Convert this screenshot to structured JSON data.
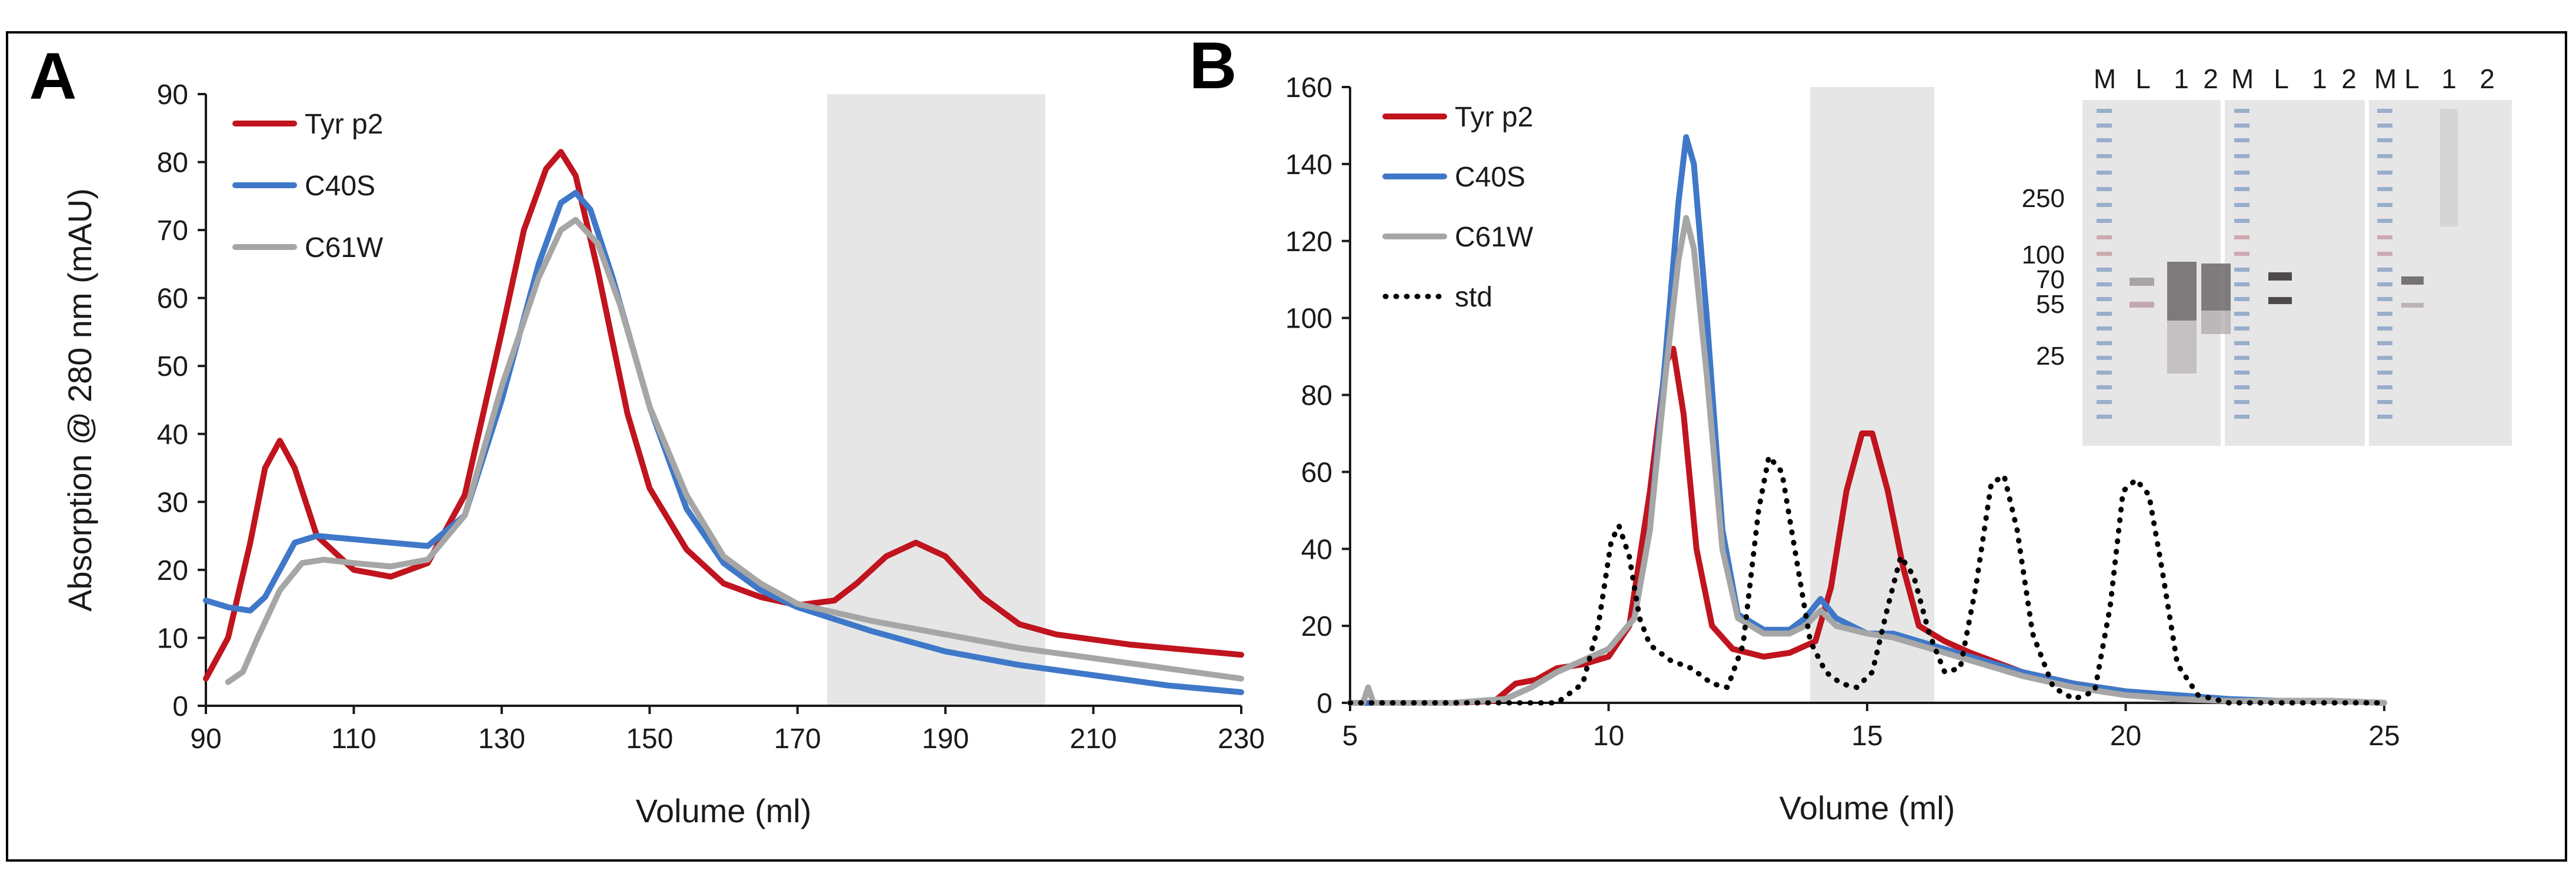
{
  "chart_data": [
    {
      "panel_label": "A",
      "type": "line",
      "xlabel": "Volume (ml)",
      "ylabel": "Absorption @ 280 nm (mAU)",
      "xlim": [
        90,
        230
      ],
      "ylim": [
        0,
        90
      ],
      "xticks": [
        90,
        110,
        130,
        150,
        170,
        190,
        210,
        230
      ],
      "yticks": [
        0,
        10,
        20,
        30,
        40,
        50,
        60,
        70,
        80,
        90
      ],
      "grid": false,
      "legend_position": "top-left",
      "shaded_region": {
        "x": [
          174,
          203.5
        ],
        "color": "#e6e6e6"
      },
      "series": [
        {
          "name": "Tyr p2",
          "color": "#c0141e",
          "x": [
            90,
            93,
            96,
            98,
            100,
            102,
            105,
            110,
            115,
            120,
            125,
            130,
            133,
            136,
            138,
            140,
            143,
            147,
            150,
            155,
            160,
            165,
            170,
            175,
            178,
            182,
            186,
            190,
            195,
            200,
            205,
            215,
            230
          ],
          "y": [
            4,
            10,
            24,
            35,
            39,
            35,
            25,
            20,
            19,
            21,
            31,
            55,
            70,
            79,
            81.5,
            78,
            64,
            43,
            32,
            23,
            18,
            16,
            14.8,
            15.5,
            18,
            22,
            24,
            22,
            16,
            12,
            10.5,
            9,
            7.5
          ]
        },
        {
          "name": "C40S",
          "color": "#3f78c8",
          "x": [
            90,
            93,
            96,
            98,
            100,
            102,
            105,
            110,
            115,
            120,
            125,
            130,
            135,
            138,
            140,
            142,
            145,
            150,
            155,
            160,
            165,
            170,
            180,
            190,
            200,
            210,
            220,
            230
          ],
          "y": [
            15.5,
            14.5,
            14,
            16,
            20,
            24,
            25,
            24.5,
            24,
            23.5,
            28,
            45,
            65,
            74,
            75.5,
            73,
            63,
            44,
            29,
            21,
            17,
            14.5,
            11,
            8,
            6,
            4.5,
            3,
            2
          ]
        },
        {
          "name": "C61W",
          "color": "#a6a6a6",
          "x": [
            93,
            95,
            97,
            100,
            103,
            106,
            110,
            115,
            120,
            125,
            130,
            135,
            138,
            140,
            143,
            146,
            150,
            155,
            160,
            165,
            170,
            180,
            190,
            200,
            210,
            220,
            230
          ],
          "y": [
            3.5,
            5,
            10,
            17,
            21,
            21.5,
            21,
            20.5,
            21.5,
            28,
            47,
            63,
            70,
            71.5,
            68,
            59,
            44,
            31,
            22,
            18,
            15,
            12.5,
            10.5,
            8.5,
            7,
            5.5,
            4
          ]
        }
      ]
    },
    {
      "panel_label": "B",
      "type": "line",
      "xlabel": "Volume (ml)",
      "xlim": [
        5,
        25
      ],
      "ylim": [
        0,
        160
      ],
      "xticks": [
        5,
        10,
        15,
        20,
        25
      ],
      "yticks": [
        0,
        20,
        40,
        60,
        80,
        100,
        120,
        140,
        160
      ],
      "grid": false,
      "legend_position": "top-left",
      "shaded_region": {
        "x": [
          13.9,
          16.3
        ],
        "color": "#e6e6e6"
      },
      "series": [
        {
          "name": "Tyr p2",
          "color": "#c0141e",
          "x": [
            5,
            6,
            7,
            7.8,
            8.2,
            8.6,
            9,
            9.5,
            10,
            10.4,
            10.8,
            11.1,
            11.25,
            11.45,
            11.7,
            12,
            12.4,
            13,
            13.5,
            14,
            14.3,
            14.6,
            14.9,
            15.1,
            15.4,
            15.7,
            16,
            16.5,
            17,
            18,
            19,
            20,
            21,
            22,
            23,
            24,
            25
          ],
          "y": [
            0,
            0,
            0,
            0.5,
            5,
            6,
            9,
            10,
            12,
            20,
            55,
            88,
            92,
            75,
            40,
            20,
            14,
            12,
            13,
            16,
            30,
            55,
            70,
            70,
            55,
            35,
            20,
            16,
            13,
            8,
            5,
            3,
            1,
            0.5,
            0.5,
            0.5,
            0
          ]
        },
        {
          "name": "C40S",
          "color": "#3f78c8",
          "x": [
            5,
            7,
            8,
            8.5,
            9,
            9.5,
            10,
            10.5,
            10.8,
            11.1,
            11.35,
            11.5,
            11.65,
            11.9,
            12.2,
            12.5,
            13,
            13.5,
            13.8,
            14.1,
            14.4,
            15,
            15.5,
            16,
            16.5,
            17,
            18,
            19,
            20,
            21,
            22,
            23,
            24,
            25
          ],
          "y": [
            0,
            0,
            1,
            4,
            8,
            11,
            14,
            22,
            45,
            90,
            130,
            147,
            140,
            100,
            45,
            23,
            19,
            19,
            22,
            27,
            22,
            18,
            18,
            16,
            14,
            12,
            8,
            5,
            3,
            2,
            1,
            0.5,
            0.5,
            0
          ]
        },
        {
          "name": "C61W",
          "color": "#a6a6a6",
          "x": [
            5,
            5.25,
            5.35,
            5.45,
            6,
            7,
            8,
            8.5,
            9,
            9.5,
            10,
            10.5,
            10.8,
            11.1,
            11.35,
            11.5,
            11.65,
            11.9,
            12.2,
            12.5,
            13,
            13.5,
            13.8,
            14.1,
            14.4,
            15,
            15.5,
            16,
            16.5,
            17,
            18,
            19,
            20,
            21,
            22,
            23,
            24,
            25
          ],
          "y": [
            0,
            0,
            4,
            0,
            0,
            0,
            1,
            4,
            8,
            11,
            14,
            22,
            45,
            85,
            115,
            126,
            118,
            85,
            40,
            22,
            18,
            18,
            20,
            24,
            20,
            18,
            17,
            15,
            13,
            11,
            7,
            4,
            2,
            1,
            0.5,
            0.5,
            0.5,
            0
          ]
        },
        {
          "name": "std",
          "color": "#000000",
          "dashed": true,
          "x": [
            5,
            8,
            9,
            9.5,
            9.8,
            10.05,
            10.2,
            10.4,
            10.6,
            10.8,
            11.2,
            11.6,
            12,
            12.3,
            12.6,
            12.9,
            13.1,
            13.35,
            13.6,
            13.9,
            14.2,
            14.5,
            14.8,
            15.1,
            15.4,
            15.65,
            15.9,
            16.2,
            16.5,
            16.8,
            17.1,
            17.4,
            17.65,
            17.9,
            18.2,
            18.6,
            19,
            19.4,
            19.7,
            19.95,
            20.2,
            20.45,
            20.7,
            21,
            21.4,
            22,
            25
          ],
          "y": [
            0,
            0,
            0,
            5,
            20,
            42,
            46,
            38,
            22,
            15,
            11,
            9,
            5,
            4,
            15,
            50,
            64,
            60,
            40,
            16,
            8,
            5,
            4,
            8,
            25,
            38,
            33,
            18,
            8,
            9,
            30,
            57,
            59,
            45,
            18,
            4,
            1,
            3,
            25,
            55,
            58,
            54,
            35,
            10,
            2,
            0,
            0
          ]
        }
      ]
    }
  ],
  "inset_blot": {
    "lane_headers": [
      [
        "M",
        "L",
        "1",
        "2"
      ],
      [
        "M",
        "L",
        "1",
        "2"
      ],
      [
        "M",
        "L",
        "1",
        "2"
      ]
    ],
    "mw_markers": [
      "250",
      "100",
      "70",
      "55",
      "25"
    ]
  }
}
